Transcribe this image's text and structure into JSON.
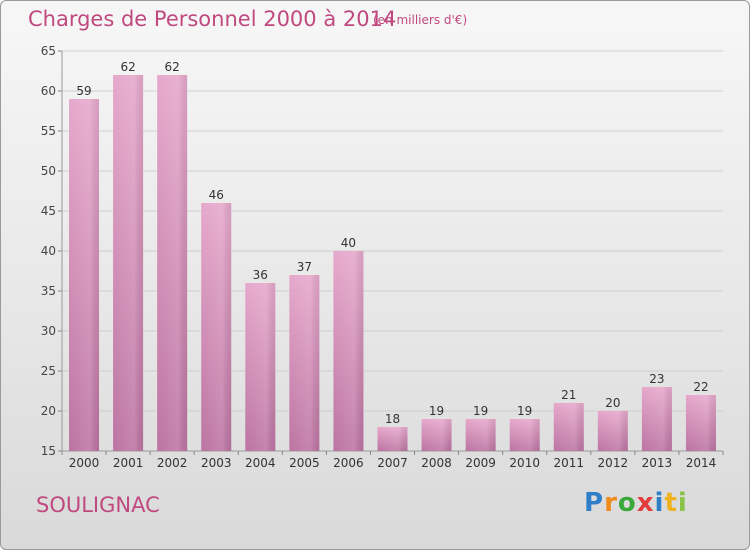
{
  "header": {
    "title": "Charges de Personnel 2000 à 2014",
    "subtitle": "(en milliers d'€)"
  },
  "footer": {
    "commune": "SOULIGNAC",
    "logo": "Proxiti"
  },
  "colors": {
    "accent": "#c0497f",
    "bar_top": "#e8a9cd",
    "bar_bottom": "#b86f9c",
    "grid": "#c8c8c8"
  },
  "chart_data": {
    "type": "bar",
    "title": "Charges de Personnel 2000 à 2014",
    "subtitle": "(en milliers d'€)",
    "categories": [
      "2000",
      "2001",
      "2002",
      "2003",
      "2004",
      "2005",
      "2006",
      "2007",
      "2008",
      "2009",
      "2010",
      "2011",
      "2012",
      "2013",
      "2014"
    ],
    "values": [
      59,
      62,
      62,
      46,
      36,
      37,
      40,
      18,
      19,
      19,
      19,
      21,
      20,
      23,
      22
    ],
    "ylim": [
      15,
      65
    ],
    "yticks": [
      15,
      20,
      25,
      30,
      35,
      40,
      45,
      50,
      55,
      60,
      65
    ],
    "grid": true,
    "data_labels": true
  }
}
